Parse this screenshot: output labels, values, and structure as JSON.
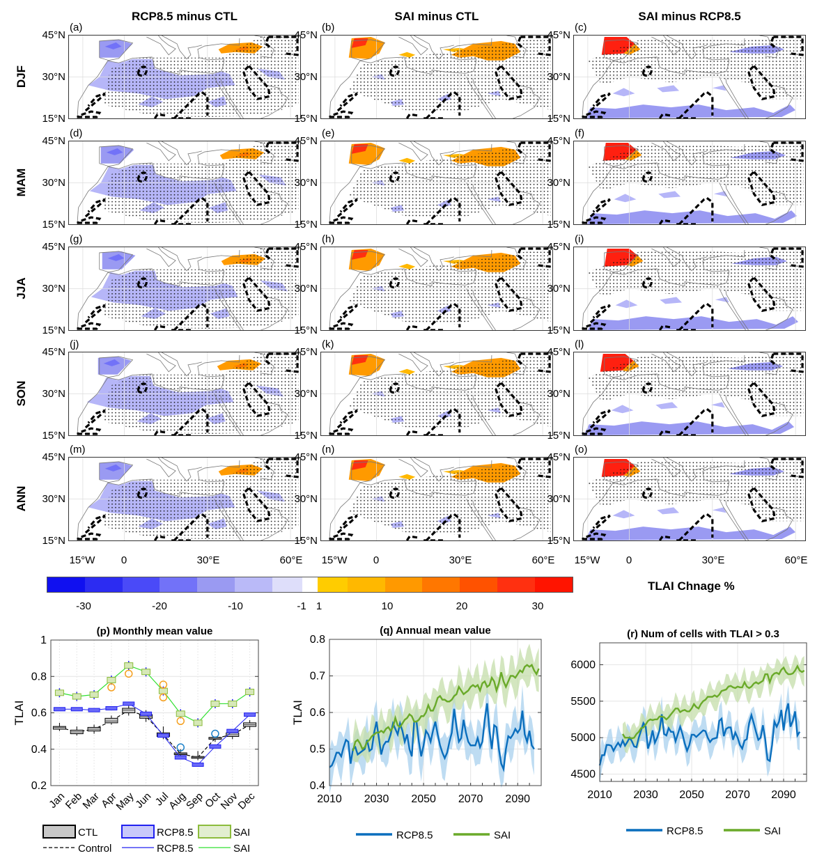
{
  "column_titles": [
    "RCP8.5 minus CTL",
    "SAI minus CTL",
    "SAI minus RCP8.5"
  ],
  "row_labels": [
    "DJF",
    "MAM",
    "JJA",
    "SON",
    "ANN"
  ],
  "panel_labels": [
    "(a)",
    "(b)",
    "(c)",
    "(d)",
    "(e)",
    "(f)",
    "(g)",
    "(h)",
    "(i)",
    "(j)",
    "(k)",
    "(l)",
    "(m)",
    "(n)",
    "(o)"
  ],
  "lat_labels": [
    "45°N",
    "30°N",
    "15°N"
  ],
  "lon_labels": [
    "15°W",
    "0",
    "30°E",
    "60°E"
  ],
  "map_extent": {
    "lon": [
      -20,
      63.5
    ],
    "lat": [
      15,
      45
    ]
  },
  "colorbar": {
    "title": "TLAI Chnage %",
    "tick_labels": [
      "-30",
      "-20",
      "-10",
      "-1",
      "1",
      "10",
      "20",
      "30"
    ],
    "colors": [
      "#1010f0",
      "#2c2cf2",
      "#4a4af8",
      "#7272f8",
      "#9a9af2",
      "#babaf8",
      "#dedefa",
      "#ffffff",
      "#ffcc00",
      "#ffb800",
      "#ff9900",
      "#ff7700",
      "#ff5200",
      "#ff3010",
      "#ff1400"
    ]
  },
  "chart_data": [
    {
      "type": "box",
      "title": "(p) Monthly mean value",
      "ylabel": "TLAI",
      "ylim": [
        0.2,
        1.0
      ],
      "yticks": [
        "0.2",
        "0.4",
        "0.6",
        "0.8",
        "1"
      ],
      "grid": true,
      "categories": [
        "Jan",
        "Feb",
        "Mar",
        "Apr",
        "May",
        "Jun",
        "Jul",
        "Aug",
        "Sep",
        "Oct",
        "Nov",
        "Dec"
      ],
      "ctl_boxes": [
        [
          0.5,
          0.51,
          0.52,
          0.525,
          0.545
        ],
        [
          0.475,
          0.485,
          0.495,
          0.505,
          0.525
        ],
        [
          0.485,
          0.5,
          0.51,
          0.52,
          0.535
        ],
        [
          0.535,
          0.545,
          0.555,
          0.57,
          0.585
        ],
        [
          0.585,
          0.6,
          0.615,
          0.625,
          0.64
        ],
        [
          0.55,
          0.57,
          0.58,
          0.59,
          0.615
        ],
        [
          0.455,
          0.47,
          0.48,
          0.49,
          0.525
        ],
        [
          0.36,
          0.37,
          0.375,
          0.38,
          0.4
        ],
        [
          0.34,
          0.35,
          0.355,
          0.36,
          0.39
        ],
        [
          0.44,
          0.455,
          0.46,
          0.465,
          0.47
        ],
        [
          0.455,
          0.47,
          0.48,
          0.49,
          0.5
        ],
        [
          0.505,
          0.525,
          0.535,
          0.545,
          0.56
        ]
      ],
      "control_line": [
        0.52,
        0.495,
        0.51,
        0.555,
        0.615,
        0.58,
        0.48,
        0.375,
        0.355,
        0.46,
        0.48,
        0.535
      ],
      "rcp85_line": [
        0.62,
        0.62,
        0.615,
        0.625,
        0.65,
        0.595,
        0.475,
        0.355,
        0.315,
        0.415,
        0.5,
        0.59
      ],
      "sai_line": [
        0.71,
        0.69,
        0.7,
        0.78,
        0.86,
        0.825,
        0.72,
        0.595,
        0.545,
        0.65,
        0.65,
        0.715
      ],
      "sai_outliers": [
        [
          4,
          0.74
        ],
        [
          5,
          0.815
        ],
        [
          7,
          0.755
        ],
        [
          7,
          0.685
        ],
        [
          8,
          0.555
        ]
      ],
      "rcp85_outliers": [
        [
          8,
          0.41
        ],
        [
          10,
          0.485
        ]
      ],
      "legend": {
        "boxes": [
          "CTL",
          "RCP8.5",
          "SAI"
        ],
        "lines": [
          "Control",
          "RCP8.5",
          "SAI"
        ]
      },
      "colors": {
        "ctl": "#c8c8c8",
        "rcp85": "#2020f0",
        "sai": "#30e030",
        "sai_box": "#8cbc3c"
      }
    },
    {
      "type": "line",
      "title": "(q) Annual mean value",
      "ylabel": "TLAI",
      "xlim": [
        2010,
        2100
      ],
      "ylim": [
        0.4,
        0.8
      ],
      "xticks": [
        "2010",
        "2030",
        "2050",
        "2070",
        "2090"
      ],
      "yticks": [
        "0.4",
        "0.5",
        "0.6",
        "0.7",
        "0.8"
      ],
      "grid": true,
      "series": [
        {
          "name": "RCP8.5",
          "color": "#0a6ebd",
          "band_color": "#a8d0ee",
          "start": 2010,
          "spread": 0.045,
          "values": [
            0.45,
            0.455,
            0.47,
            0.49,
            0.49,
            0.48,
            0.505,
            0.525,
            0.52,
            0.46,
            0.5,
            0.505,
            0.485,
            0.49,
            0.495,
            0.5,
            0.525,
            0.495,
            0.5,
            0.545,
            0.575,
            0.53,
            0.485,
            0.51,
            0.52,
            0.52,
            0.54,
            0.57,
            0.555,
            0.54,
            0.57,
            0.55,
            0.52,
            0.54,
            0.5,
            0.48,
            0.575,
            0.575,
            0.52,
            0.48,
            0.51,
            0.55,
            0.54,
            0.52,
            0.55,
            0.575,
            0.54,
            0.51,
            0.49,
            0.475,
            0.49,
            0.52,
            0.545,
            0.61,
            0.56,
            0.52,
            0.53,
            0.58,
            0.545,
            0.52,
            0.51,
            0.51,
            0.51,
            0.53,
            0.505,
            0.52,
            0.58,
            0.625,
            0.55,
            0.5,
            0.565,
            0.56,
            0.5,
            0.46,
            0.445,
            0.5,
            0.535,
            0.53,
            0.54,
            0.555,
            0.545,
            0.555,
            0.605,
            0.54,
            0.52,
            0.55,
            0.51,
            0.5
          ]
        },
        {
          "name": "SAI",
          "color": "#6aaa2a",
          "band_color": "#c4deaa",
          "start": 2020,
          "spread": 0.04,
          "values": [
            0.495,
            0.52,
            0.525,
            0.515,
            0.5,
            0.505,
            0.52,
            0.525,
            0.535,
            0.54,
            0.545,
            0.545,
            0.55,
            0.545,
            0.555,
            0.56,
            0.55,
            0.56,
            0.585,
            0.565,
            0.56,
            0.57,
            0.58,
            0.585,
            0.595,
            0.59,
            0.575,
            0.575,
            0.58,
            0.59,
            0.59,
            0.6,
            0.62,
            0.605,
            0.605,
            0.62,
            0.64,
            0.645,
            0.635,
            0.635,
            0.63,
            0.63,
            0.635,
            0.645,
            0.65,
            0.67,
            0.66,
            0.65,
            0.655,
            0.66,
            0.67,
            0.675,
            0.67,
            0.675,
            0.66,
            0.68,
            0.685,
            0.67,
            0.675,
            0.695,
            0.685,
            0.66,
            0.68,
            0.71,
            0.685,
            0.67,
            0.685,
            0.7,
            0.7,
            0.695,
            0.705,
            0.715,
            0.71,
            0.725,
            0.73,
            0.725,
            0.73,
            0.715,
            0.705,
            0.72
          ]
        }
      ]
    },
    {
      "type": "line",
      "title": "(r) Num of cells with TLAI > 0.3",
      "ylabel": "",
      "xlim": [
        2010,
        2100
      ],
      "ylim": [
        4400,
        6300
      ],
      "xticks": [
        "2010",
        "2030",
        "2050",
        "2070",
        "2090"
      ],
      "yticks": [
        "4500",
        "5000",
        "5500",
        "6000"
      ],
      "grid": true,
      "series": [
        {
          "name": "RCP8.5",
          "color": "#0a6ebd",
          "band_color": "#a8d0ee",
          "start": 2010,
          "spread": 160,
          "values": [
            4620,
            4760,
            4760,
            4900,
            4900,
            4890,
            4820,
            4880,
            4930,
            4880,
            4960,
            4890,
            4940,
            5000,
            4950,
            4880,
            4870,
            5000,
            5100,
            5200,
            5150,
            4850,
            4950,
            5100,
            4930,
            5000,
            5100,
            5320,
            5050,
            5030,
            5130,
            5080,
            5080,
            4950,
            5050,
            5150,
            5050,
            4920,
            4820,
            4900,
            5040,
            5040,
            5010,
            5040,
            5070,
            5100,
            5090,
            5000,
            4940,
            4980,
            4990,
            5000,
            5230,
            5260,
            5020,
            5120,
            5140,
            5140,
            4970,
            5070,
            5000,
            4900,
            4850,
            4960,
            4980,
            5200,
            5310,
            5200,
            5080,
            4970,
            5000,
            5170,
            4980,
            4700,
            4680,
            4900,
            5220,
            5150,
            5220,
            5380,
            5100,
            5350,
            5470,
            5150,
            5230,
            5360,
            5030,
            5080
          ]
        },
        {
          "name": "SAI",
          "color": "#6aaa2a",
          "band_color": "#c4deaa",
          "start": 2020,
          "spread": 140,
          "values": [
            5050,
            5000,
            5000,
            5000,
            4990,
            5000,
            5050,
            5080,
            5130,
            5140,
            5180,
            5230,
            5250,
            5240,
            5250,
            5250,
            5290,
            5290,
            5280,
            5250,
            5280,
            5320,
            5360,
            5400,
            5400,
            5350,
            5370,
            5380,
            5360,
            5360,
            5400,
            5460,
            5420,
            5400,
            5460,
            5500,
            5520,
            5560,
            5560,
            5560,
            5580,
            5560,
            5590,
            5640,
            5650,
            5660,
            5700,
            5710,
            5690,
            5680,
            5700,
            5690,
            5690,
            5760,
            5700,
            5680,
            5700,
            5740,
            5760,
            5740,
            5760,
            5780,
            5870,
            5870,
            5760,
            5850,
            5880,
            5890,
            5870,
            5930,
            5960,
            5900,
            5870,
            5870,
            5880,
            5920,
            5980,
            5920,
            5900,
            5920
          ]
        }
      ]
    }
  ]
}
